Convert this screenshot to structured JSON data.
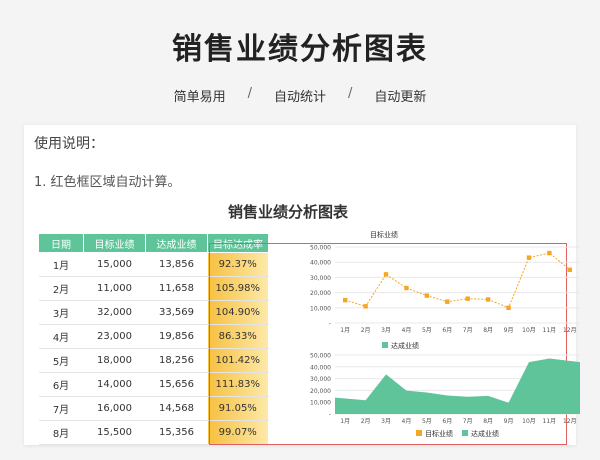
{
  "header": {
    "title": "销售业绩分析图表",
    "features": [
      "简单易用",
      "自动统计",
      "自动更新"
    ],
    "separator": "/"
  },
  "usage": {
    "title": "使用说明：",
    "items": [
      "1. 红色框区域自动计算。"
    ]
  },
  "sheet": {
    "title": "销售业绩分析图表",
    "columns": [
      "日期",
      "目标业绩",
      "达成业绩",
      "目标达成率"
    ],
    "rows": [
      [
        "1月",
        "15,000",
        "13,856",
        "92.37%"
      ],
      [
        "2月",
        "11,000",
        "11,658",
        "105.98%"
      ],
      [
        "3月",
        "32,000",
        "33,569",
        "104.90%"
      ],
      [
        "4月",
        "23,000",
        "19,856",
        "86.33%"
      ],
      [
        "5月",
        "18,000",
        "18,256",
        "101.42%"
      ],
      [
        "6月",
        "14,000",
        "15,656",
        "111.83%"
      ],
      [
        "7月",
        "16,000",
        "14,568",
        "91.05%"
      ],
      [
        "8月",
        "15,500",
        "15,356",
        "99.07%"
      ]
    ]
  },
  "colors": {
    "header_green": "#5fc49a",
    "target_orange": "#f5a623",
    "achieved_green": "#5fc49a",
    "rate_gold": "#f7c040",
    "frame_red": "#e06060"
  },
  "chart_data": [
    {
      "type": "line",
      "title": "目标业绩",
      "categories": [
        "1月",
        "2月",
        "3月",
        "4月",
        "5月",
        "6月",
        "7月",
        "8月",
        "9月",
        "10月",
        "11月",
        "12月"
      ],
      "series": [
        {
          "name": "目标业绩",
          "values": [
            15000,
            11000,
            32000,
            23000,
            18000,
            14000,
            16000,
            15500,
            10000,
            43000,
            46000,
            35000
          ]
        }
      ],
      "yticks": [
        "50,000",
        "40,000",
        "30,000",
        "20,000",
        "10,000",
        "-"
      ],
      "ylim": [
        0,
        50000
      ],
      "grid": true
    },
    {
      "type": "area",
      "title": "",
      "categories": [
        "1月",
        "2月",
        "3月",
        "4月",
        "5月",
        "6月",
        "7月",
        "8月",
        "9月",
        "10月",
        "11月",
        "12月"
      ],
      "series": [
        {
          "name": "达成业绩",
          "values": [
            13856,
            11658,
            33569,
            19856,
            18256,
            15656,
            14568,
            15356,
            9500,
            44000,
            47000,
            44000
          ]
        }
      ],
      "yticks": [
        "50,000",
        "40,000",
        "30,000",
        "20,000",
        "10,000",
        "-"
      ],
      "ylim": [
        0,
        50000
      ],
      "grid": true,
      "legend": {
        "position": "top",
        "items": [
          "达成业绩"
        ]
      },
      "bottom_legend": [
        "目标业绩",
        "达成业绩"
      ]
    }
  ]
}
